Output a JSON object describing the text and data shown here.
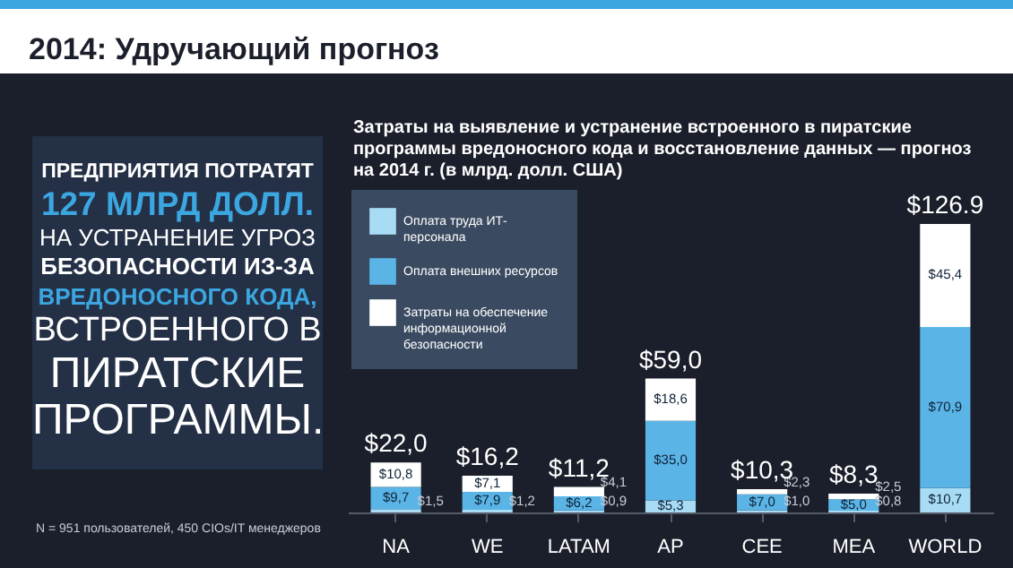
{
  "chart_data": {
    "type": "bar",
    "stacked": true,
    "title": "2014: Удручающий прогноз",
    "subtitle": "Затраты на выявление и устранение встроенного в пиратские программы вредоносного кода и восстановление данных — прогноз на 2014 г. (в млрд. долл. США)",
    "annotations": [
      "ПРЕДПРИЯТИЯ ПОТРАТЯТ",
      "127 МЛРД ДОЛЛ.",
      "НА УСТРАНЕНИЕ УГРОЗ",
      "БЕЗОПАСНОСТИ ИЗ-ЗА",
      "ВРЕДОНОСНОГО КОДА,",
      "ВСТРОЕННОГО В",
      "ПИРАТСКИЕ",
      "ПРОГРАММЫ.",
      "N = 951 пользователей, 450 CIOs/IT менеджеров"
    ],
    "categories": [
      "NA",
      "WE",
      "LATAM",
      "AP",
      "CEE",
      "MEA",
      "WORLD"
    ],
    "series": [
      {
        "name": "Оплата труда ИТ- персонала",
        "color": "#a8dcf5",
        "values": [
          1.5,
          1.2,
          0.9,
          5.3,
          1.0,
          0.8,
          10.7
        ],
        "value_labels": [
          "$1,5",
          "$1,2",
          "$0,9",
          "$5,3",
          "$1,0",
          "$0,8",
          "$10,7"
        ]
      },
      {
        "name": "Оплата внешних ресурсов",
        "color": "#5ab4e6",
        "values": [
          9.7,
          7.9,
          6.2,
          35.0,
          7.0,
          5.0,
          70.9
        ],
        "value_labels": [
          "$9,7",
          "$7,9",
          "$6,2",
          "$35,0",
          "$7,0",
          "$5,0",
          "$70,9"
        ]
      },
      {
        "name": "Затраты на обеспечение информационной безопасности",
        "color": "#ffffff",
        "values": [
          10.8,
          7.1,
          4.1,
          18.6,
          2.3,
          2.5,
          45.4
        ],
        "value_labels": [
          "$10,8",
          "$7,1",
          "$4,1",
          "$18,6",
          "$2,3",
          "$2,5",
          "$45,4"
        ]
      }
    ],
    "totals": [
      "$22,0",
      "$16,2",
      "$11,2",
      "$59,0",
      "$10,3",
      "$8,3",
      "$126.9"
    ],
    "legend": "top left",
    "grid": false
  }
}
